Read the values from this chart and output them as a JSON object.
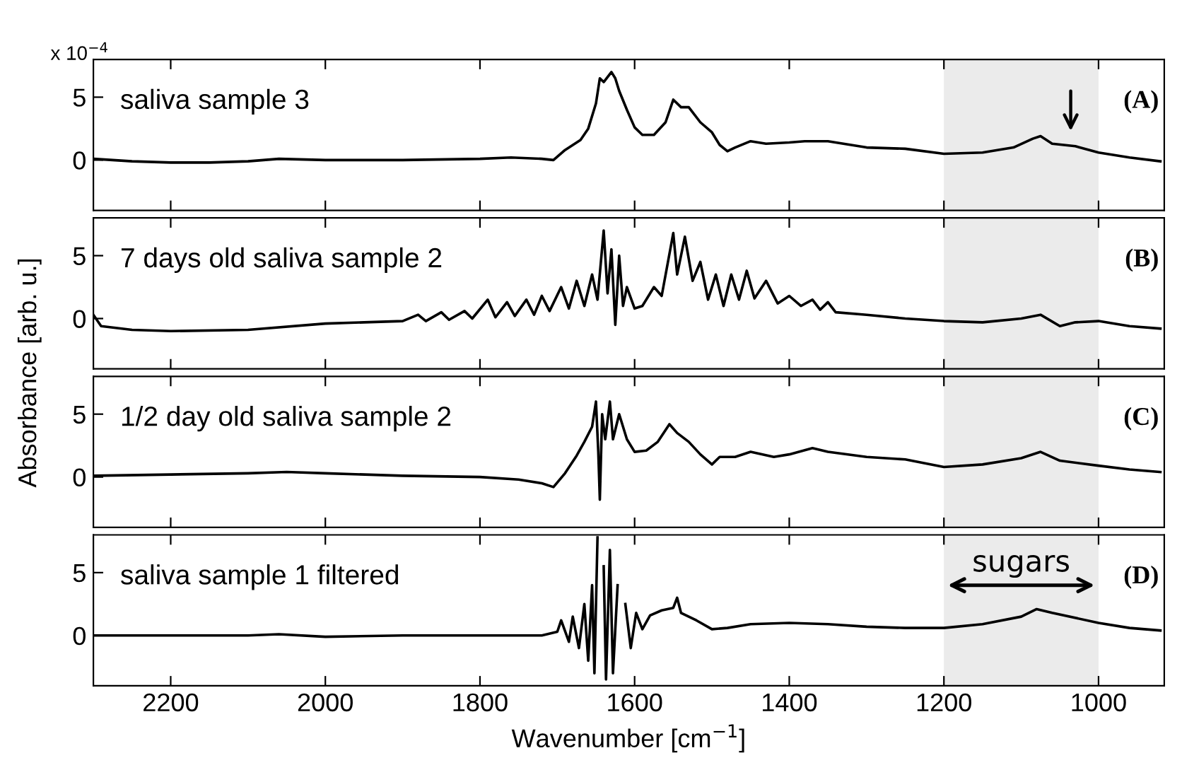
{
  "chart_data": [
    {
      "type": "line",
      "xlim": [
        2300,
        915
      ],
      "ylim": [
        -4,
        8
      ],
      "xticks": [
        {
          "value": 2200,
          "label": null
        },
        {
          "value": 2000,
          "label": null
        },
        {
          "value": 1800,
          "label": null
        },
        {
          "value": 1600,
          "label": null
        },
        {
          "value": 1400,
          "label": null
        },
        {
          "value": 1200,
          "label": null
        },
        {
          "value": 1000,
          "label": null
        }
      ],
      "yticks": [
        0,
        5
      ],
      "tick_labels": "y",
      "grid": false,
      "legend": false,
      "annotations": [
        "saliva sample 3",
        "(A)",
        "x 10$^{−4}$"
      ],
      "bands": [
        {
          "axis": "x",
          "from": 1200,
          "to": 1000,
          "color": "#ebebeb"
        }
      ],
      "series": [
        {
          "color": "#000000",
          "x": [
            2300,
            2250,
            2200,
            2150,
            2100,
            2060,
            2000,
            1900,
            1800,
            1760,
            1720,
            1705,
            1690,
            1670,
            1660,
            1650,
            1645,
            1640,
            1630,
            1625,
            1620,
            1610,
            1600,
            1590,
            1575,
            1560,
            1550,
            1540,
            1530,
            1515,
            1500,
            1490,
            1480,
            1470,
            1450,
            1430,
            1400,
            1380,
            1350,
            1320,
            1300,
            1250,
            1200,
            1150,
            1110,
            1085,
            1075,
            1060,
            1030,
            1000,
            960,
            920
          ],
          "values": [
            0.1,
            -0.1,
            -0.2,
            -0.2,
            -0.1,
            0.1,
            0.0,
            0.0,
            0.1,
            0.2,
            0.1,
            0.0,
            0.8,
            1.6,
            2.5,
            4.5,
            6.5,
            6.2,
            7.0,
            6.5,
            5.5,
            4.0,
            2.6,
            2.0,
            2.0,
            3.0,
            4.8,
            4.2,
            4.2,
            3.0,
            2.2,
            1.2,
            0.7,
            1.0,
            1.5,
            1.3,
            1.4,
            1.5,
            1.5,
            1.2,
            1.0,
            0.9,
            0.5,
            0.6,
            1.0,
            1.7,
            1.9,
            1.3,
            1.1,
            0.6,
            0.2,
            -0.1
          ]
        }
      ]
    },
    {
      "type": "line",
      "xlim": [
        2300,
        915
      ],
      "ylim": [
        -4,
        8
      ],
      "xticks": [
        {
          "value": 2200,
          "label": null
        },
        {
          "value": 2000,
          "label": null
        },
        {
          "value": 1800,
          "label": null
        },
        {
          "value": 1600,
          "label": null
        },
        {
          "value": 1400,
          "label": null
        },
        {
          "value": 1200,
          "label": null
        },
        {
          "value": 1000,
          "label": null
        }
      ],
      "yticks": [
        0,
        5
      ],
      "tick_labels": "y",
      "grid": false,
      "legend": false,
      "ylabel": "Absorbance [arb. u.]",
      "annotations": [
        "7 days old saliva sample 2",
        "(B)"
      ],
      "bands": [
        {
          "axis": "x",
          "from": 1200,
          "to": 1000,
          "color": "#ebebeb"
        }
      ],
      "series": [
        {
          "color": "#000000",
          "x": [
            2300,
            2290,
            2250,
            2200,
            2100,
            2000,
            1950,
            1900,
            1880,
            1870,
            1850,
            1840,
            1820,
            1810,
            1790,
            1780,
            1765,
            1755,
            1740,
            1730,
            1720,
            1710,
            1695,
            1685,
            1675,
            1665,
            1655,
            1648,
            1640,
            1635,
            1630,
            1625,
            1620,
            1615,
            1610,
            1600,
            1590,
            1575,
            1565,
            1550,
            1545,
            1535,
            1525,
            1515,
            1505,
            1495,
            1485,
            1475,
            1465,
            1455,
            1445,
            1430,
            1415,
            1400,
            1385,
            1370,
            1360,
            1350,
            1340,
            1300,
            1250,
            1200,
            1150,
            1100,
            1075,
            1050,
            1030,
            1000,
            960,
            920
          ],
          "values": [
            0.3,
            -0.6,
            -0.9,
            -1.0,
            -0.9,
            -0.4,
            -0.3,
            -0.2,
            0.3,
            -0.2,
            0.5,
            -0.1,
            0.6,
            0.0,
            1.5,
            0.1,
            1.3,
            0.2,
            1.5,
            0.3,
            1.8,
            0.6,
            2.5,
            0.8,
            3.0,
            1.0,
            3.5,
            1.5,
            7.0,
            2.0,
            5.5,
            -0.5,
            5.0,
            1.0,
            2.5,
            0.8,
            1.0,
            2.5,
            1.8,
            6.8,
            3.5,
            6.5,
            3.0,
            4.5,
            1.5,
            3.5,
            1.0,
            3.5,
            1.5,
            3.8,
            1.6,
            3.0,
            1.2,
            1.8,
            1.0,
            1.5,
            0.7,
            1.3,
            0.5,
            0.3,
            0.0,
            -0.2,
            -0.3,
            0.0,
            0.3,
            -0.6,
            -0.3,
            -0.2,
            -0.6,
            -0.8
          ]
        }
      ]
    },
    {
      "type": "line",
      "xlim": [
        2300,
        915
      ],
      "ylim": [
        -4,
        8
      ],
      "xticks": [
        {
          "value": 2200,
          "label": null
        },
        {
          "value": 2000,
          "label": null
        },
        {
          "value": 1800,
          "label": null
        },
        {
          "value": 1600,
          "label": null
        },
        {
          "value": 1400,
          "label": null
        },
        {
          "value": 1200,
          "label": null
        },
        {
          "value": 1000,
          "label": null
        }
      ],
      "yticks": [
        0,
        5
      ],
      "tick_labels": "y",
      "grid": false,
      "legend": false,
      "annotations": [
        "1/2 day old saliva sample 2",
        "(C)"
      ],
      "bands": [
        {
          "axis": "x",
          "from": 1200,
          "to": 1000,
          "color": "#ebebeb"
        }
      ],
      "series": [
        {
          "color": "#000000",
          "x": [
            2300,
            2200,
            2100,
            2050,
            2000,
            1900,
            1800,
            1750,
            1720,
            1705,
            1690,
            1675,
            1665,
            1655,
            1650,
            1647,
            1645,
            1642,
            1638,
            1632,
            1628,
            1620,
            1610,
            1600,
            1585,
            1570,
            1555,
            1545,
            1530,
            1515,
            1500,
            1490,
            1470,
            1450,
            1420,
            1400,
            1370,
            1350,
            1300,
            1250,
            1200,
            1150,
            1100,
            1075,
            1050,
            1000,
            960,
            920
          ],
          "values": [
            0.1,
            0.2,
            0.3,
            0.4,
            0.3,
            0.1,
            0.0,
            -0.2,
            -0.5,
            -0.8,
            0.3,
            1.7,
            2.8,
            4.0,
            6.0,
            2.0,
            -1.8,
            5.0,
            3.0,
            6.0,
            3.0,
            5.0,
            3.0,
            2.0,
            2.1,
            2.8,
            4.2,
            3.5,
            2.8,
            1.8,
            1.0,
            1.6,
            1.6,
            2.0,
            1.6,
            1.8,
            2.3,
            2.0,
            1.6,
            1.4,
            0.8,
            1.0,
            1.5,
            2.0,
            1.3,
            0.9,
            0.6,
            0.4
          ]
        }
      ]
    },
    {
      "type": "line",
      "xlim": [
        2300,
        915
      ],
      "ylim": [
        -4,
        8
      ],
      "xticks": [
        2200,
        2000,
        1800,
        1600,
        1400,
        1200,
        1000
      ],
      "yticks": [
        0,
        5
      ],
      "grid": false,
      "legend": false,
      "xlabel": "Wavenumber [cm$^{−1}$]",
      "annotations": [
        "saliva sample 1 filtered",
        "(D)"
      ],
      "bands": [
        {
          "axis": "x",
          "from": 1200,
          "to": 1000,
          "color": "#ebebeb",
          "label": "sugars"
        }
      ],
      "series": [
        {
          "color": "#000000",
          "x": [
            2300,
            2200,
            2100,
            2060,
            2000,
            1900,
            1800,
            1720,
            1700,
            1695,
            1685,
            1680,
            1672,
            1665,
            1660,
            1655,
            1652,
            1648,
            1645,
            1640,
            1637,
            1632,
            1628,
            1622,
            1618,
            1612,
            1605,
            1598,
            1590,
            1580,
            1565,
            1550,
            1545,
            1540,
            1520,
            1500,
            1480,
            1450,
            1400,
            1350,
            1300,
            1250,
            1200,
            1150,
            1100,
            1080,
            1060,
            1000,
            960,
            920
          ],
          "values": [
            0.0,
            0.0,
            0.0,
            0.1,
            -0.1,
            0.0,
            0.0,
            0.0,
            0.3,
            1.2,
            -0.5,
            1.5,
            -1.0,
            2.5,
            -2.0,
            4.0,
            -3.0,
            7.8,
            null,
            5.5,
            -3.5,
            6.8,
            -3.0,
            4.0,
            null,
            2.5,
            -1.0,
            1.8,
            0.5,
            1.6,
            2.0,
            2.2,
            3.0,
            1.8,
            1.2,
            0.5,
            0.6,
            0.9,
            1.0,
            0.9,
            0.7,
            0.6,
            0.6,
            0.9,
            1.5,
            2.1,
            1.8,
            1.0,
            0.6,
            0.4
          ]
        }
      ]
    }
  ]
}
